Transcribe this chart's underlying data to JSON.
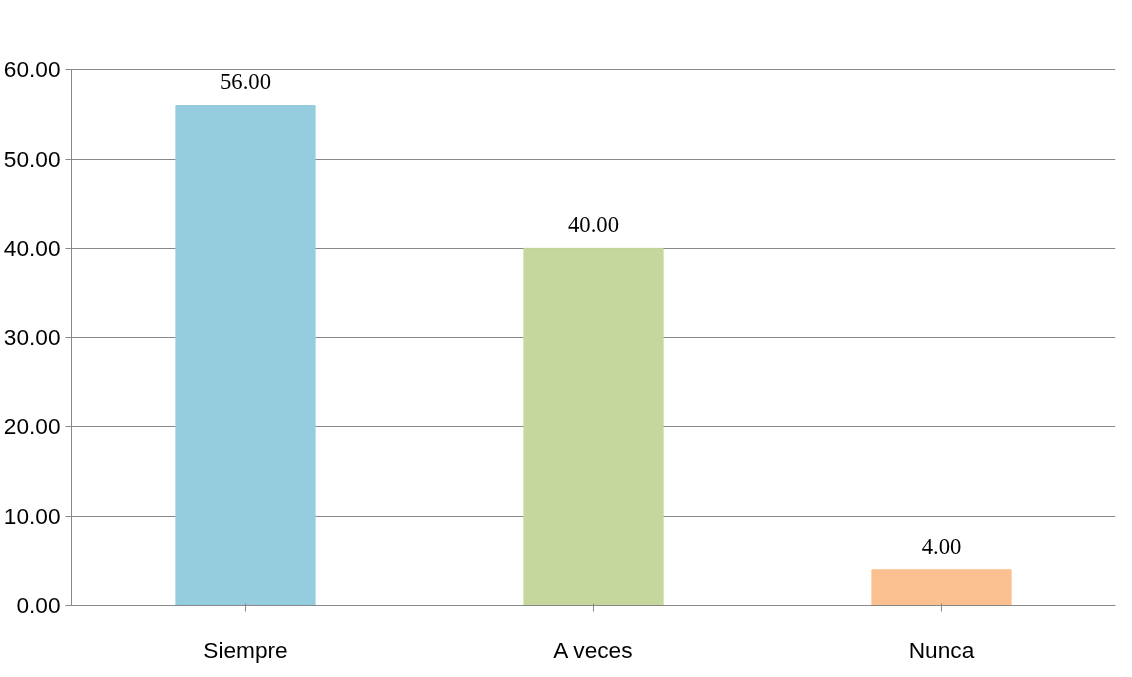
{
  "chart_data": {
    "type": "bar",
    "categories": [
      "Siempre",
      "A veces",
      "Nunca"
    ],
    "values": [
      56,
      40,
      4
    ],
    "colors": [
      "#95cddf",
      "#c5d79d",
      "#fbc08f"
    ],
    "value_labels": [
      "56.00",
      "40.00",
      "4.00"
    ],
    "ylim": [
      0,
      60
    ],
    "yticks": [
      {
        "value": 0,
        "label": "0.00"
      },
      {
        "value": 10,
        "label": "10.00"
      },
      {
        "value": 20,
        "label": "20.00"
      },
      {
        "value": 30,
        "label": "30.00"
      },
      {
        "value": 40,
        "label": "40.00"
      },
      {
        "value": 50,
        "label": "50.00"
      },
      {
        "value": 60,
        "label": "60.00"
      }
    ],
    "grid": "y"
  }
}
